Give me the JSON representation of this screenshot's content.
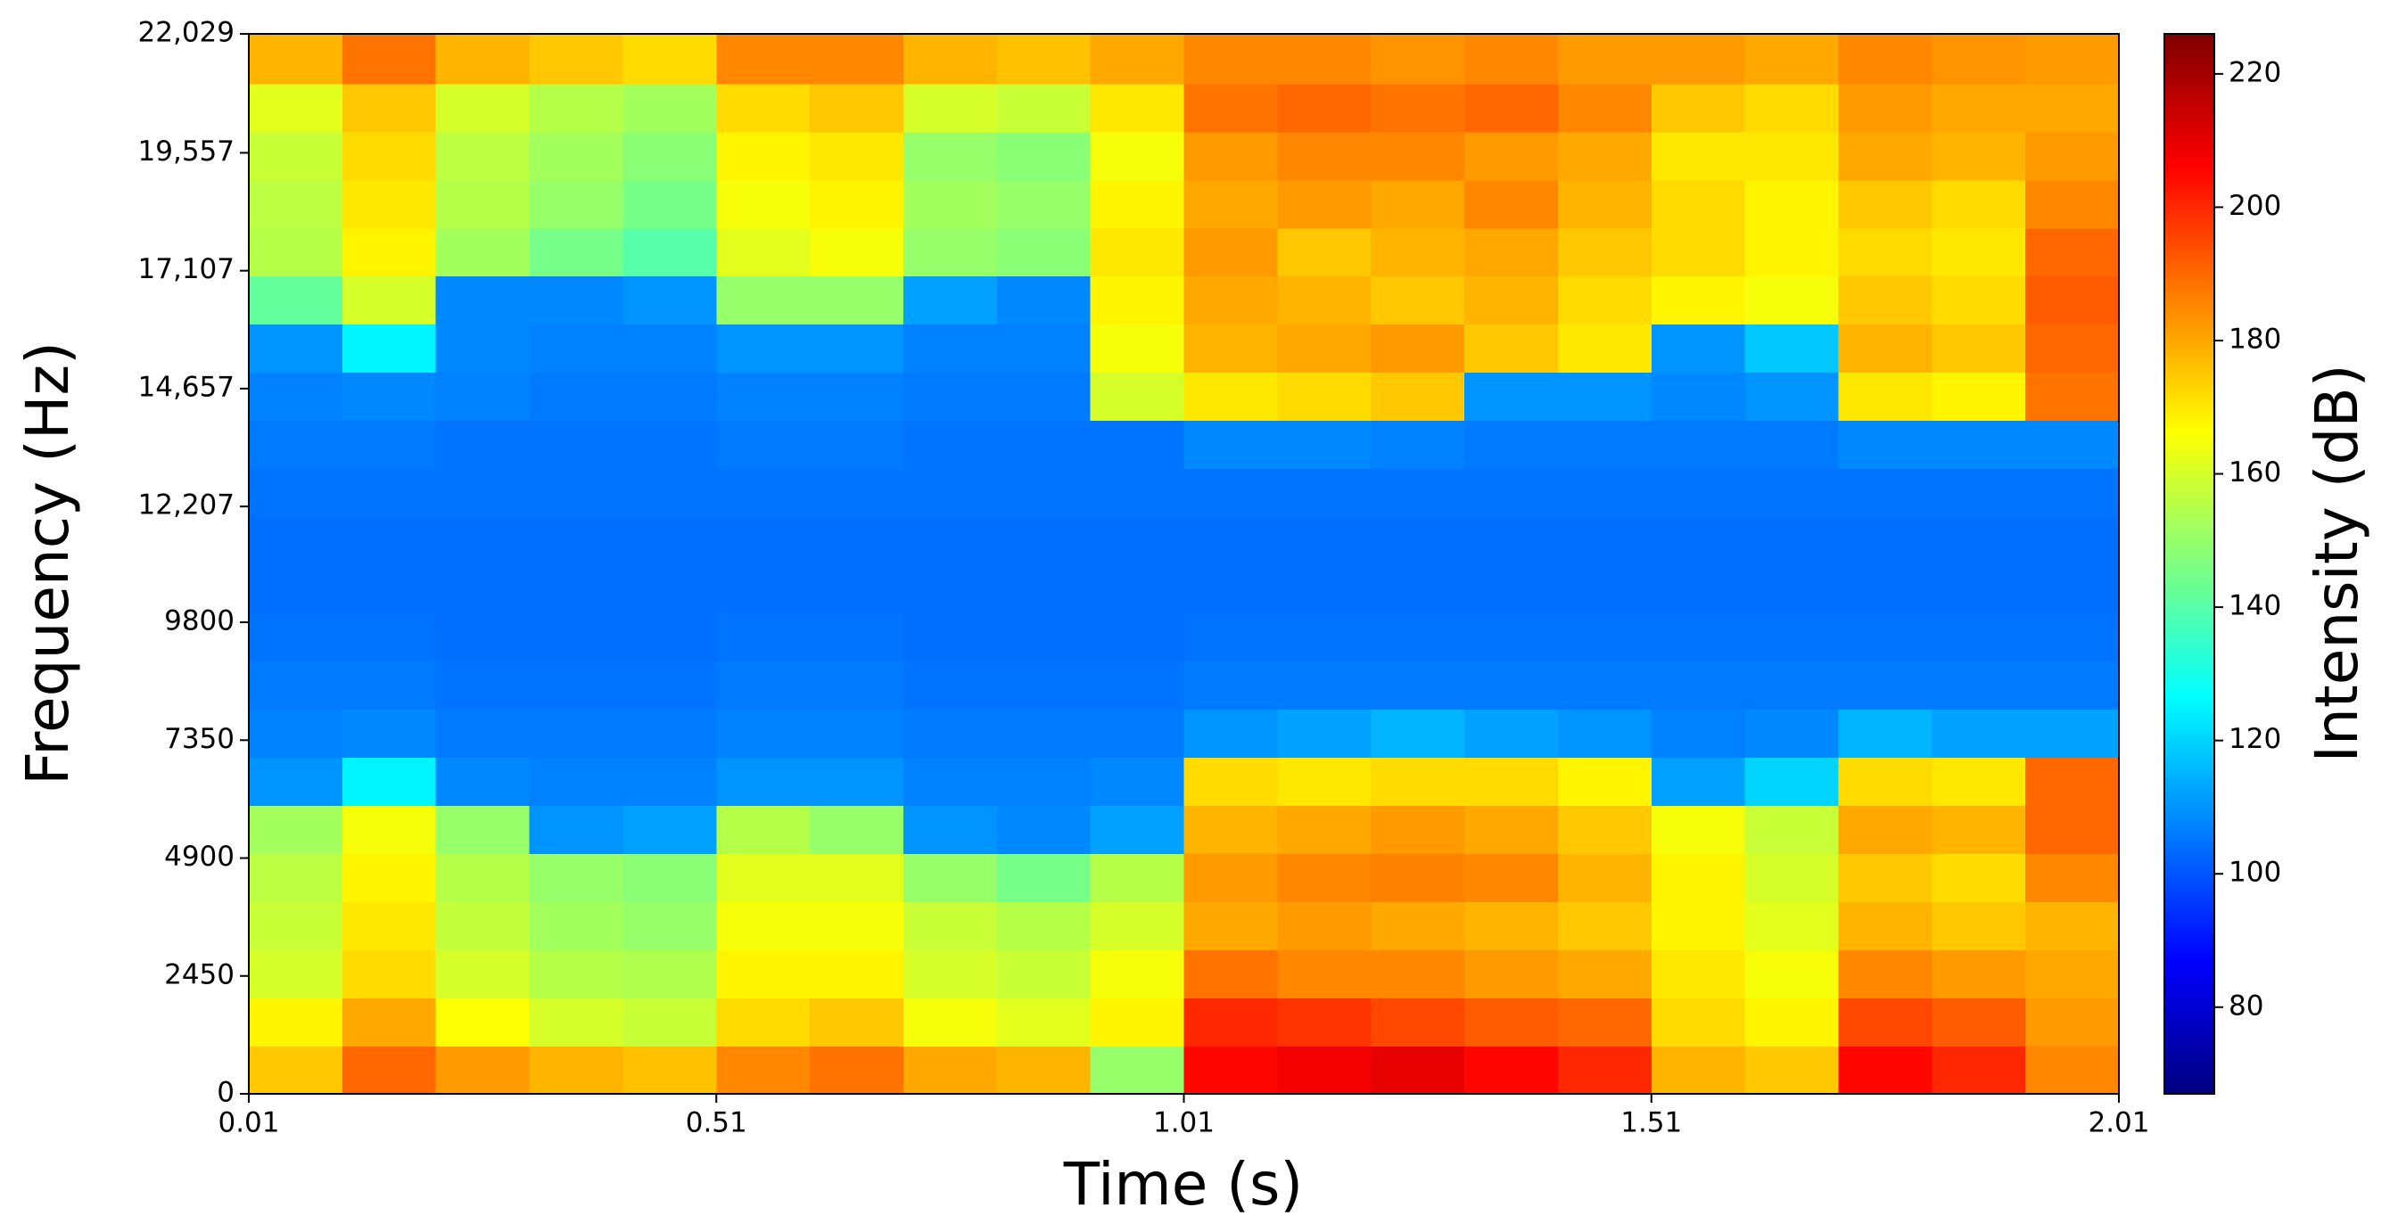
{
  "chart_data": {
    "type": "spectrogram",
    "x_label": "Time (s)",
    "y_label": "Frequency (Hz)",
    "colorbar_label": "Intensity (dB)",
    "colormap": "jet",
    "x": [
      0.06,
      0.16,
      0.26,
      0.36,
      0.46,
      0.56,
      0.66,
      0.76,
      0.86,
      0.96,
      1.06,
      1.16,
      1.26,
      1.36,
      1.46,
      1.56,
      1.66,
      1.76,
      1.86,
      1.96
    ],
    "y": [
      500,
      1500,
      2500,
      3500,
      4500,
      5500,
      6500,
      7500,
      8500,
      9500,
      10500,
      11500,
      12500,
      13500,
      14500,
      15500,
      16500,
      17500,
      18500,
      19500,
      20500,
      21500
    ],
    "values": [
      [
        175,
        168,
        160,
        158,
        156,
        152,
        110,
        107,
        106,
        105,
        104,
        104,
        105,
        106,
        107,
        110,
        142,
        155,
        156,
        158,
        162,
        178
      ],
      [
        190,
        180,
        172,
        170,
        168,
        165,
        125,
        108,
        106,
        105,
        104,
        104,
        105,
        106,
        108,
        125,
        160,
        168,
        170,
        172,
        175,
        188
      ],
      [
        182,
        166,
        160,
        157,
        155,
        150,
        108,
        106,
        105,
        104,
        104,
        104,
        105,
        105,
        107,
        108,
        108,
        152,
        155,
        156,
        160,
        178
      ],
      [
        178,
        160,
        155,
        152,
        150,
        110,
        107,
        106,
        105,
        104,
        104,
        104,
        105,
        105,
        106,
        107,
        108,
        145,
        150,
        152,
        155,
        175
      ],
      [
        176,
        158,
        154,
        150,
        148,
        112,
        107,
        106,
        105,
        104,
        104,
        104,
        105,
        105,
        106,
        107,
        110,
        140,
        145,
        148,
        152,
        172
      ],
      [
        185,
        172,
        168,
        165,
        162,
        155,
        110,
        107,
        106,
        105,
        104,
        104,
        105,
        106,
        107,
        110,
        150,
        162,
        165,
        168,
        172,
        185
      ],
      [
        188,
        175,
        168,
        165,
        162,
        150,
        110,
        107,
        106,
        105,
        104,
        104,
        105,
        106,
        107,
        110,
        150,
        165,
        168,
        170,
        175,
        185
      ],
      [
        180,
        165,
        160,
        158,
        150,
        110,
        107,
        106,
        105,
        104,
        104,
        104,
        105,
        105,
        106,
        107,
        112,
        150,
        152,
        150,
        160,
        178
      ],
      [
        178,
        162,
        158,
        155,
        145,
        108,
        107,
        106,
        105,
        104,
        104,
        104,
        105,
        105,
        106,
        107,
        108,
        148,
        150,
        148,
        158,
        176
      ],
      [
        150,
        168,
        165,
        160,
        155,
        112,
        108,
        106,
        105,
        104,
        104,
        104,
        105,
        105,
        160,
        165,
        168,
        170,
        168,
        165,
        170,
        180
      ],
      [
        205,
        200,
        188,
        180,
        182,
        178,
        172,
        110,
        106,
        105,
        104,
        104,
        105,
        108,
        170,
        178,
        180,
        182,
        180,
        182,
        188,
        185
      ],
      [
        208,
        198,
        185,
        182,
        185,
        180,
        170,
        112,
        106,
        105,
        104,
        104,
        105,
        108,
        172,
        180,
        178,
        175,
        182,
        185,
        190,
        185
      ],
      [
        210,
        195,
        185,
        180,
        186,
        182,
        172,
        115,
        106,
        105,
        104,
        104,
        105,
        107,
        175,
        182,
        175,
        178,
        180,
        185,
        188,
        183
      ],
      [
        205,
        192,
        182,
        178,
        185,
        180,
        172,
        112,
        106,
        105,
        104,
        104,
        105,
        106,
        110,
        175,
        178,
        180,
        185,
        182,
        190,
        185
      ],
      [
        200,
        190,
        180,
        175,
        178,
        175,
        168,
        110,
        106,
        105,
        104,
        104,
        105,
        106,
        110,
        170,
        172,
        175,
        178,
        180,
        185,
        182
      ],
      [
        178,
        172,
        170,
        168,
        168,
        165,
        112,
        107,
        106,
        105,
        104,
        104,
        105,
        106,
        108,
        110,
        168,
        172,
        172,
        170,
        175,
        182
      ],
      [
        175,
        168,
        165,
        162,
        160,
        158,
        120,
        108,
        106,
        105,
        104,
        104,
        105,
        106,
        110,
        118,
        165,
        168,
        168,
        170,
        172,
        180
      ],
      [
        205,
        195,
        185,
        178,
        175,
        180,
        172,
        115,
        106,
        105,
        104,
        104,
        105,
        108,
        170,
        178,
        175,
        172,
        175,
        180,
        182,
        185
      ],
      [
        200,
        192,
        182,
        175,
        172,
        178,
        170,
        112,
        106,
        105,
        104,
        104,
        105,
        108,
        168,
        175,
        172,
        170,
        172,
        178,
        180,
        183
      ],
      [
        185,
        182,
        180,
        178,
        185,
        190,
        190,
        112,
        106,
        105,
        104,
        104,
        105,
        108,
        188,
        190,
        192,
        190,
        185,
        182,
        180,
        182
      ]
    ],
    "xlim": [
      0.01,
      2.01
    ],
    "xticks": [
      0.01,
      0.51,
      1.01,
      1.51,
      2.01
    ],
    "ylim": [
      0,
      22029
    ],
    "yticks": [
      0,
      2450,
      4900,
      7350,
      9800,
      {
        "value": 12207,
        "label": "12,207"
      },
      {
        "value": 14657,
        "label": "14,657"
      },
      {
        "value": 17107,
        "label": "17,107"
      },
      {
        "value": 19557,
        "label": "19,557"
      },
      {
        "value": 22029,
        "label": "22,029"
      }
    ],
    "clim": [
      67,
      226
    ],
    "cticks": [
      80,
      100,
      120,
      140,
      160,
      180,
      200,
      220
    ]
  }
}
